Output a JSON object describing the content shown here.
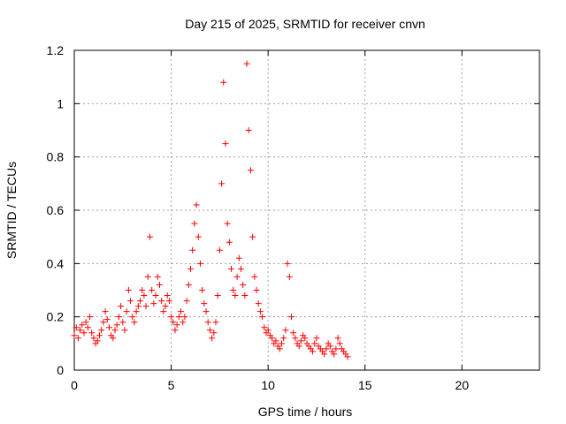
{
  "chart_data": {
    "type": "scatter",
    "title": "Day 215 of 2025, SRMTID for receiver cnvn",
    "xlabel": "GPS time / hours",
    "ylabel": "SRMTID / TECUs",
    "xlim": [
      0,
      24
    ],
    "ylim": [
      0,
      1.2
    ],
    "x_ticks": [
      0,
      5,
      10,
      15,
      20
    ],
    "x_tick_labels": [
      "0",
      "5",
      "10",
      "15",
      "20"
    ],
    "y_ticks": [
      0,
      0.2,
      0.4,
      0.6,
      0.8,
      1.0,
      1.2
    ],
    "y_tick_labels": [
      "0",
      "0.2",
      "0.4",
      "0.6",
      "0.8",
      "1",
      "1.2"
    ],
    "grid": true,
    "marker": "plus",
    "marker_color": "#ff0000",
    "series": [
      {
        "name": "cnvn",
        "x": [
          0.0,
          0.1,
          0.2,
          0.3,
          0.4,
          0.5,
          0.6,
          0.7,
          0.8,
          0.9,
          1.0,
          1.1,
          1.2,
          1.3,
          1.4,
          1.5,
          1.6,
          1.7,
          1.8,
          1.9,
          2.0,
          2.1,
          2.2,
          2.3,
          2.4,
          2.5,
          2.6,
          2.7,
          2.8,
          2.9,
          3.0,
          3.1,
          3.2,
          3.3,
          3.4,
          3.5,
          3.6,
          3.7,
          3.8,
          3.9,
          4.0,
          4.1,
          4.2,
          4.3,
          4.4,
          4.5,
          4.6,
          4.7,
          4.8,
          4.9,
          5.0,
          5.1,
          5.2,
          5.3,
          5.4,
          5.5,
          5.6,
          5.7,
          5.8,
          5.9,
          6.0,
          6.1,
          6.2,
          6.3,
          6.4,
          6.5,
          6.6,
          6.7,
          6.8,
          6.9,
          7.0,
          7.1,
          7.2,
          7.3,
          7.4,
          7.5,
          7.6,
          7.7,
          7.8,
          7.9,
          8.0,
          8.1,
          8.2,
          8.3,
          8.4,
          8.5,
          8.6,
          8.7,
          8.8,
          8.9,
          9.0,
          9.1,
          9.2,
          9.3,
          9.4,
          9.5,
          9.6,
          9.7,
          9.8,
          9.9,
          10.0,
          10.1,
          10.2,
          10.3,
          10.4,
          10.5,
          10.6,
          10.7,
          10.8,
          10.9,
          11.0,
          11.1,
          11.2,
          11.3,
          11.4,
          11.5,
          11.6,
          11.7,
          11.8,
          11.9,
          12.0,
          12.1,
          12.2,
          12.3,
          12.4,
          12.5,
          12.6,
          12.7,
          12.8,
          12.9,
          13.0,
          13.1,
          13.2,
          13.3,
          13.4,
          13.5,
          13.6,
          13.7,
          13.8,
          13.9,
          14.0,
          14.1
        ],
        "y": [
          0.13,
          0.16,
          0.12,
          0.15,
          0.17,
          0.14,
          0.18,
          0.16,
          0.2,
          0.14,
          0.12,
          0.1,
          0.11,
          0.13,
          0.15,
          0.18,
          0.22,
          0.19,
          0.16,
          0.13,
          0.12,
          0.15,
          0.17,
          0.2,
          0.24,
          0.18,
          0.15,
          0.22,
          0.3,
          0.26,
          0.2,
          0.18,
          0.22,
          0.24,
          0.26,
          0.3,
          0.28,
          0.24,
          0.35,
          0.5,
          0.3,
          0.25,
          0.28,
          0.35,
          0.32,
          0.26,
          0.22,
          0.24,
          0.28,
          0.26,
          0.2,
          0.18,
          0.15,
          0.17,
          0.2,
          0.22,
          0.18,
          0.2,
          0.26,
          0.32,
          0.38,
          0.45,
          0.55,
          0.62,
          0.5,
          0.4,
          0.3,
          0.25,
          0.22,
          0.18,
          0.15,
          0.12,
          0.14,
          0.18,
          0.28,
          0.45,
          0.7,
          1.08,
          0.85,
          0.55,
          0.48,
          0.38,
          0.3,
          0.28,
          0.35,
          0.42,
          0.38,
          0.32,
          0.28,
          1.15,
          0.9,
          0.75,
          0.5,
          0.35,
          0.3,
          0.25,
          0.22,
          0.2,
          0.16,
          0.14,
          0.15,
          0.13,
          0.12,
          0.1,
          0.11,
          0.09,
          0.08,
          0.1,
          0.12,
          0.15,
          0.4,
          0.35,
          0.2,
          0.14,
          0.12,
          0.1,
          0.09,
          0.11,
          0.13,
          0.12,
          0.1,
          0.09,
          0.08,
          0.07,
          0.1,
          0.12,
          0.09,
          0.08,
          0.07,
          0.06,
          0.08,
          0.1,
          0.09,
          0.07,
          0.06,
          0.08,
          0.12,
          0.1,
          0.08,
          0.07,
          0.06,
          0.05
        ]
      }
    ]
  }
}
